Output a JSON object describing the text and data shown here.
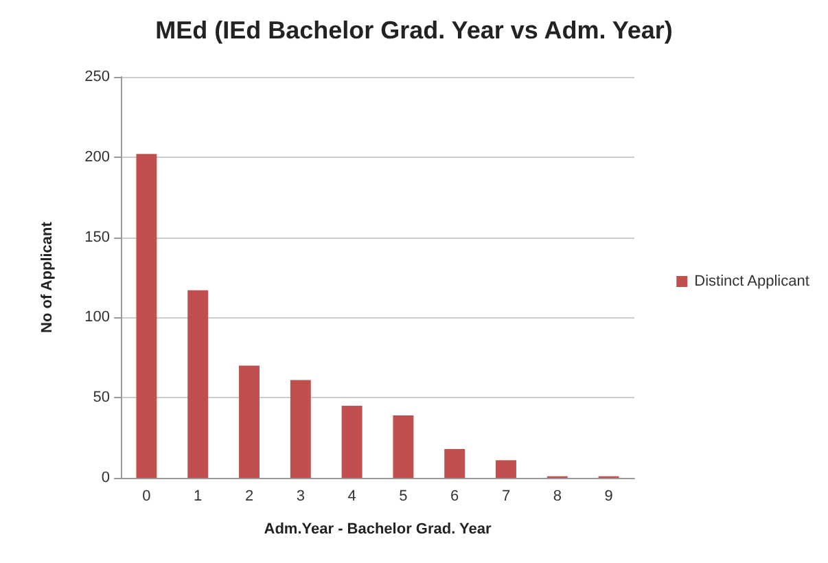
{
  "chart_data": {
    "type": "bar",
    "title": "MEd (IEd Bachelor Grad. Year vs Adm. Year)",
    "xlabel": "Adm.Year - Bachelor Grad. Year",
    "ylabel": "No of Applicant",
    "categories": [
      "0",
      "1",
      "2",
      "3",
      "4",
      "5",
      "6",
      "7",
      "8",
      "9"
    ],
    "series": [
      {
        "name": "Distinct Applicant",
        "color": "#c0504d",
        "values": [
          202,
          117,
          70,
          61,
          45,
          39,
          18,
          11,
          1,
          1
        ]
      }
    ],
    "ylim": [
      0,
      250
    ],
    "yticks": [
      0,
      50,
      100,
      150,
      200,
      250
    ],
    "grid": "y",
    "legend": "right"
  }
}
